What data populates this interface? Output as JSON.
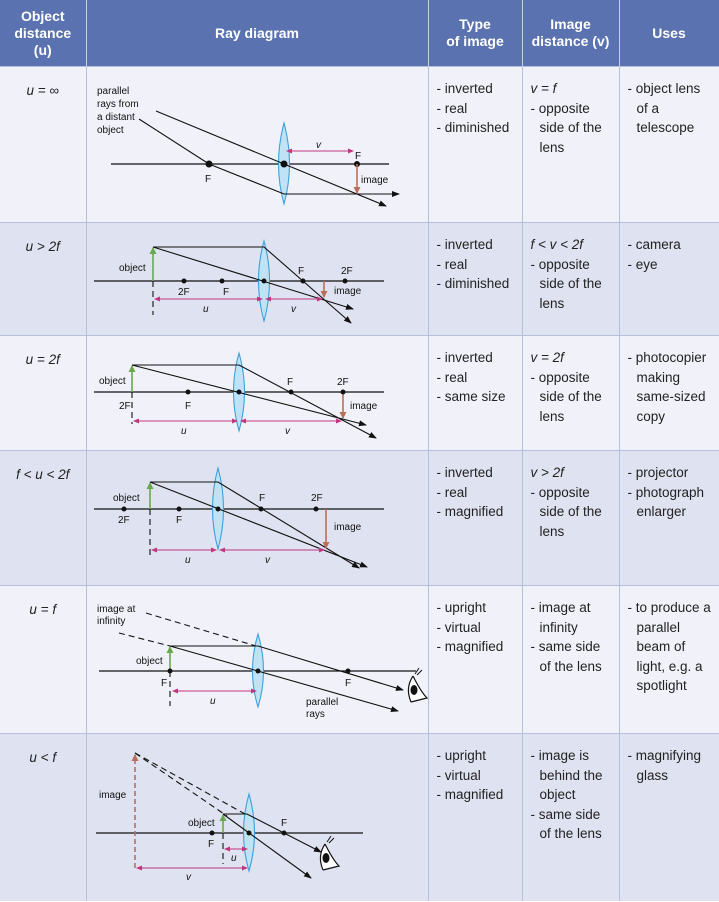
{
  "header": {
    "object_distance": [
      "Object",
      "distance",
      "(u)"
    ],
    "ray_diagram": "Ray diagram",
    "type_of_image": [
      "Type",
      "of image"
    ],
    "image_distance": [
      "Image",
      "distance (v)"
    ],
    "uses": "Uses"
  },
  "colors": {
    "header": "#5a72b0",
    "row_light": "#f1f2f9",
    "row_dark": "#dfe2f0",
    "lens": "#3ea0d8",
    "object_arrow": "#6aa84f",
    "image_arrow": "#b9705a",
    "dimension": "#c2357f"
  },
  "rows": [
    {
      "u": "u = ∞",
      "type": [
        "- inverted",
        "- real",
        "- diminished"
      ],
      "v": [
        "v = f",
        "- opposite side of the lens"
      ],
      "uses": [
        "- object lens of a telescope"
      ],
      "labels": {
        "parallel": [
          "parallel",
          "rays from",
          "a distant",
          "object"
        ],
        "f1": "F",
        "f2": "F",
        "v": "v",
        "image": "image"
      }
    },
    {
      "u": "u > 2f",
      "type": [
        "- inverted",
        "- real",
        "- diminished"
      ],
      "v": [
        "f < v < 2f",
        "- opposite side of the lens"
      ],
      "uses": [
        "- camera",
        "- eye"
      ],
      "labels": {
        "object": "object",
        "f2l": "2F",
        "fl": "F",
        "fr": "F",
        "f2r": "2F",
        "image": "image",
        "u": "u",
        "v": "v"
      }
    },
    {
      "u": "u = 2f",
      "type": [
        "- inverted",
        "- real",
        "- same size"
      ],
      "v": [
        "v = 2f",
        "- opposite side of the lens"
      ],
      "uses": [
        "- photocopier making same-sized copy"
      ],
      "labels": {
        "object": "object",
        "f2l": "2F",
        "fl": "F",
        "fr": "F",
        "f2r": "2F",
        "image": "image",
        "u": "u",
        "v": "v"
      }
    },
    {
      "u": "f < u < 2f",
      "type": [
        "- inverted",
        "- real",
        "- magnified"
      ],
      "v": [
        "v > 2f",
        "- opposite side of the lens"
      ],
      "uses": [
        "- projector",
        "- photograph enlarger"
      ],
      "labels": {
        "object": "object",
        "f2l": "2F",
        "fl": "F",
        "fr": "F",
        "f2r": "2F",
        "image": "image",
        "u": "u",
        "v": "v"
      }
    },
    {
      "u": "u = f",
      "type": [
        "- upright",
        "- virtual",
        "- magnified"
      ],
      "v": [
        "- image at infinity",
        "- same side of the lens"
      ],
      "uses": [
        "- to produce a parallel beam of light, e.g. a spotlight"
      ],
      "labels": {
        "image_inf": [
          "image at",
          "infinity"
        ],
        "object": "object",
        "fl": "F",
        "fr": "F",
        "parallel": [
          "parallel",
          "rays"
        ],
        "u": "u"
      }
    },
    {
      "u": "u < f",
      "type": [
        "- upright",
        "- virtual",
        "- magnified"
      ],
      "v": [
        "- image is behind the object",
        "- same side of the lens"
      ],
      "uses": [
        "- magnifying glass"
      ],
      "labels": {
        "image": "image",
        "object": "object",
        "fl": "F",
        "fr": "F",
        "u": "u",
        "v": "v"
      }
    }
  ]
}
